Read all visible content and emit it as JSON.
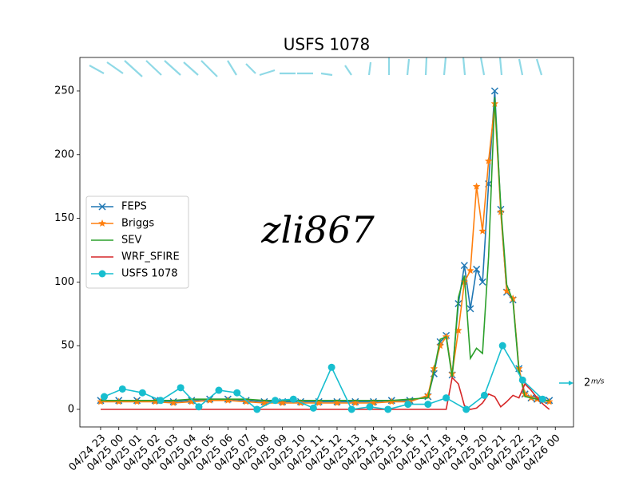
{
  "chart_data": {
    "type": "line",
    "title": "USFS 1078",
    "watermark": "zli867",
    "quiver_key_label": "2",
    "quiver_key_unit": "m/s",
    "xlim": [
      -1.14,
      26.0
    ],
    "ylim": [
      -13.8,
      276.3
    ],
    "xticks": [
      {
        "value": 0,
        "label": "04/24 23"
      },
      {
        "value": 1,
        "label": "04/25 00"
      },
      {
        "value": 2,
        "label": "04/25 01"
      },
      {
        "value": 3,
        "label": "04/25 02"
      },
      {
        "value": 4,
        "label": "04/25 03"
      },
      {
        "value": 5,
        "label": "04/25 04"
      },
      {
        "value": 6,
        "label": "04/25 05"
      },
      {
        "value": 7,
        "label": "04/25 06"
      },
      {
        "value": 8,
        "label": "04/25 07"
      },
      {
        "value": 9,
        "label": "04/25 08"
      },
      {
        "value": 10,
        "label": "04/25 09"
      },
      {
        "value": 11,
        "label": "04/25 10"
      },
      {
        "value": 12,
        "label": "04/25 11"
      },
      {
        "value": 13,
        "label": "04/25 12"
      },
      {
        "value": 14,
        "label": "04/25 13"
      },
      {
        "value": 15,
        "label": "04/25 14"
      },
      {
        "value": 16,
        "label": "04/25 15"
      },
      {
        "value": 17,
        "label": "04/25 16"
      },
      {
        "value": 18,
        "label": "04/25 17"
      },
      {
        "value": 19,
        "label": "04/25 18"
      },
      {
        "value": 20,
        "label": "04/25 19"
      },
      {
        "value": 21,
        "label": "04/25 20"
      },
      {
        "value": 22,
        "label": "04/25 21"
      },
      {
        "value": 23,
        "label": "04/25 22"
      },
      {
        "value": 24,
        "label": "04/25 23"
      },
      {
        "value": 25,
        "label": "04/26 00"
      }
    ],
    "yticks": [
      0,
      50,
      100,
      150,
      200,
      250
    ],
    "legend": "center left",
    "series": [
      {
        "name": "FEPS",
        "color": "#1f77b4",
        "marker": "x",
        "x": [
          0,
          1,
          2,
          3,
          4,
          5,
          6,
          7,
          8,
          9,
          10,
          11,
          12,
          13,
          14,
          15,
          16,
          17,
          18,
          18.33,
          18.67,
          19,
          19.33,
          19.67,
          20,
          20.33,
          20.67,
          21,
          21.33,
          21.67,
          22,
          22.33,
          22.67,
          23,
          23.33,
          23.67,
          24,
          24.33,
          24.67
        ],
        "values": [
          7,
          7,
          7,
          7,
          6,
          7,
          8,
          8,
          7,
          6,
          6,
          6,
          6,
          6,
          6,
          6,
          7,
          7,
          10,
          28,
          53,
          58,
          27,
          83,
          113,
          79,
          110,
          100,
          177,
          250,
          157,
          92,
          86,
          32,
          12,
          9,
          8,
          7,
          7
        ]
      },
      {
        "name": "Briggs",
        "color": "#ff7f0e",
        "marker": "star",
        "x": [
          0,
          1,
          2,
          3,
          4,
          5,
          6,
          7,
          8,
          9,
          10,
          11,
          12,
          13,
          14,
          15,
          16,
          17,
          18,
          18.33,
          18.67,
          19,
          19.33,
          19.67,
          20,
          20.33,
          20.67,
          21,
          21.33,
          21.67,
          22,
          22.33,
          22.67,
          23,
          23.33,
          23.67,
          24,
          24.33,
          24.67
        ],
        "values": [
          6,
          6,
          6,
          6,
          5,
          6,
          7,
          7,
          6,
          5,
          5,
          5,
          5,
          5,
          5,
          5,
          6,
          6,
          11,
          32,
          50,
          57,
          28,
          62,
          100,
          109,
          175,
          140,
          195,
          240,
          155,
          93,
          87,
          32,
          12,
          9,
          8,
          7,
          6
        ]
      },
      {
        "name": "SEV",
        "color": "#2ca02c",
        "marker": "none",
        "x": [
          0,
          1,
          2,
          3,
          4,
          5,
          6,
          7,
          8,
          9,
          10,
          11,
          12,
          13,
          14,
          15,
          16,
          17,
          18,
          18.33,
          18.67,
          19,
          19.33,
          19.67,
          20,
          20.33,
          20.67,
          21,
          21.33,
          21.67,
          22,
          22.33,
          22.67,
          23,
          23.33,
          23.67,
          24,
          24.33,
          24.67
        ],
        "values": [
          7,
          7,
          7,
          7,
          7,
          8,
          8,
          8,
          8,
          7,
          7,
          7,
          7,
          7,
          7,
          7,
          7,
          8,
          9,
          30,
          55,
          57,
          25,
          88,
          105,
          40,
          48,
          44,
          120,
          245,
          160,
          98,
          85,
          30,
          10,
          9,
          8,
          7,
          7
        ]
      },
      {
        "name": "WRF_SFIRE",
        "color": "#d62728",
        "marker": "none",
        "x": [
          0,
          1,
          2,
          3,
          4,
          5,
          6,
          7,
          8,
          9,
          10,
          11,
          12,
          13,
          14,
          15,
          16,
          17,
          18,
          18.33,
          18.67,
          19,
          19.33,
          19.67,
          20,
          20.33,
          20.67,
          21,
          21.33,
          21.67,
          22,
          22.33,
          22.67,
          23,
          23.33,
          23.67,
          24,
          24.33,
          24.67
        ],
        "values": [
          0,
          0,
          0,
          0,
          0,
          0,
          0,
          0,
          0,
          0,
          0,
          0,
          0,
          0,
          0,
          0,
          0,
          0,
          0,
          0,
          0,
          0,
          25,
          20,
          3,
          0,
          1,
          5,
          12,
          10,
          2,
          6,
          11,
          9,
          20,
          15,
          9,
          4,
          0
        ]
      },
      {
        "name": "USFS 1078",
        "color": "#17becf",
        "marker": "circle",
        "x": [
          0.2,
          1.2,
          2.3,
          3.3,
          4.4,
          5.4,
          6.5,
          7.5,
          8.6,
          9.6,
          10.6,
          11.7,
          12.7,
          13.8,
          14.8,
          15.8,
          16.9,
          18.0,
          19.0,
          20.1,
          21.1,
          22.1,
          23.2,
          24.3
        ],
        "values": [
          10,
          16,
          13,
          7,
          17,
          2,
          15,
          13,
          0,
          7,
          8,
          1,
          33,
          0,
          2,
          0,
          4,
          4,
          9,
          0,
          11,
          50,
          23,
          8
        ]
      }
    ]
  }
}
